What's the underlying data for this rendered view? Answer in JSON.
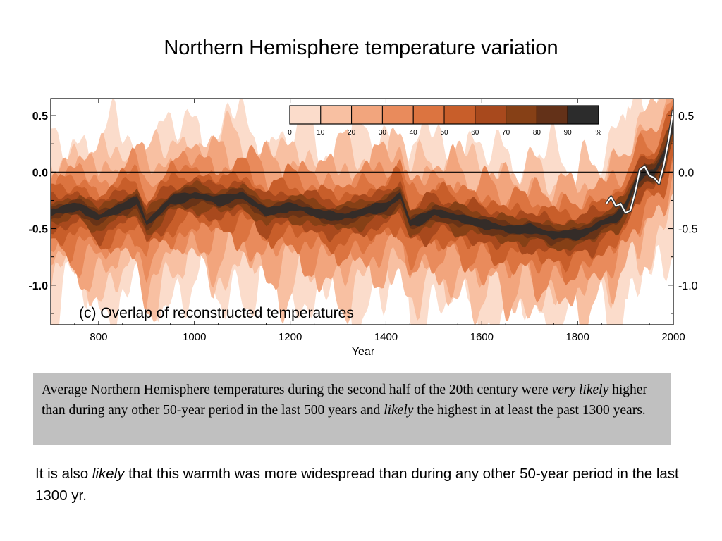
{
  "slide": {
    "title": "Northern Hemisphere temperature variation",
    "callout": {
      "p1": "Average Northern Hemisphere temperatures during the second half of the 20th century were ",
      "em1": "very likely",
      "p2": " higher than during any other 50-year period in the last 500 years and ",
      "em2": "likely",
      "p3": " the highest in at least the past 1300 years."
    },
    "note": {
      "p1": "It is also ",
      "em1": "likely",
      "p2": " that this warmth was more widespread than during any other 50-year period in the last 1300 yr."
    }
  },
  "chart_data": {
    "type": "heatmap",
    "title": "",
    "panel_label": "(c) Overlap of reconstructed temperatures",
    "xlabel": "Year",
    "ylabel": "",
    "xlim": [
      700,
      2000
    ],
    "ylim": [
      -1.35,
      0.65
    ],
    "x_ticks": [
      800,
      1000,
      1200,
      1400,
      1600,
      1800,
      2000
    ],
    "y_ticks": [
      0.5,
      0.0,
      -0.5,
      -1.0
    ],
    "y_tick_labels": [
      "0.5",
      "0.0",
      "-0.5",
      "-1.0"
    ],
    "zero_line": true,
    "colorbar": {
      "label_unit": "%",
      "ticks": [
        "0",
        "10",
        "20",
        "30",
        "40",
        "50",
        "60",
        "70",
        "80",
        "90"
      ],
      "colors": [
        "#fbdccb",
        "#f8c0a2",
        "#f2a57d",
        "#e98b5c",
        "#dc7440",
        "#c85e2a",
        "#a8491d",
        "#864016",
        "#633118",
        "#2c2c2c"
      ],
      "placement": "top-center"
    },
    "overlap_center": {
      "x": [
        700,
        760,
        800,
        850,
        880,
        900,
        950,
        1000,
        1050,
        1100,
        1150,
        1200,
        1250,
        1300,
        1350,
        1400,
        1430,
        1450,
        1480,
        1500,
        1550,
        1600,
        1650,
        1700,
        1750,
        1800,
        1830,
        1850,
        1880,
        1900,
        1920,
        1940,
        1960,
        1980,
        2000
      ],
      "y": [
        -0.35,
        -0.3,
        -0.4,
        -0.3,
        -0.25,
        -0.45,
        -0.25,
        -0.2,
        -0.25,
        -0.2,
        -0.35,
        -0.3,
        -0.35,
        -0.4,
        -0.35,
        -0.3,
        -0.2,
        -0.45,
        -0.4,
        -0.35,
        -0.4,
        -0.45,
        -0.5,
        -0.5,
        -0.55,
        -0.55,
        -0.5,
        -0.45,
        -0.4,
        -0.3,
        -0.1,
        0.0,
        0.0,
        0.15,
        0.4
      ]
    },
    "instrumental": {
      "name": "",
      "x": [
        1860,
        1870,
        1880,
        1890,
        1900,
        1910,
        1920,
        1930,
        1940,
        1950,
        1960,
        1970,
        1980,
        1990,
        2000
      ],
      "y": [
        -0.28,
        -0.22,
        -0.3,
        -0.28,
        -0.36,
        -0.34,
        -0.18,
        0.02,
        0.05,
        -0.03,
        -0.05,
        -0.1,
        0.06,
        0.28,
        0.55
      ]
    }
  }
}
